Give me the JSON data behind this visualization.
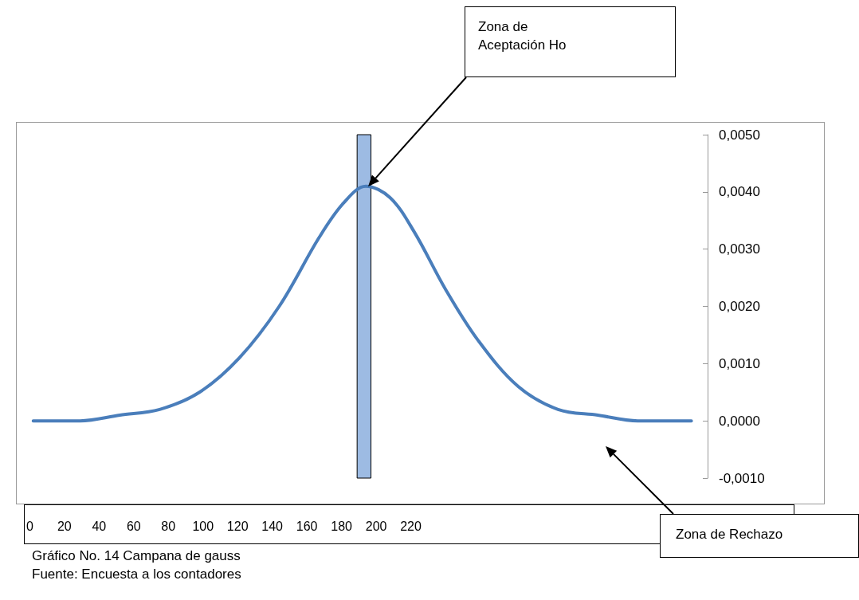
{
  "chart_data": {
    "type": "line",
    "title": "Gráfico No. 14  Campana de gauss",
    "x": [
      2,
      29,
      52,
      75,
      98,
      121,
      144,
      167,
      181,
      194,
      208,
      222,
      240,
      259,
      282,
      305,
      328,
      351,
      382
    ],
    "series": [
      {
        "color": "#4a7ebb",
        "values": [
          0,
          0,
          0.0001,
          0.0002,
          0.0005,
          0.0011,
          0.002,
          0.0032,
          0.0038,
          0.0041,
          0.0039,
          0.0033,
          0.0023,
          0.0014,
          0.0006,
          0.0002,
          0.0001,
          0,
          0
        ]
      }
    ],
    "xlim": [
      -8,
      459
    ],
    "xticks": [
      0,
      20,
      40,
      60,
      80,
      100,
      120,
      140,
      160,
      180,
      200,
      220
    ],
    "ylim": [
      -0.001,
      0.005
    ],
    "yticks": [
      {
        "value": -0.001,
        "label": "-0,0010"
      },
      {
        "value": 0,
        "label": "0,0000"
      },
      {
        "value": 0.001,
        "label": "0,0010"
      },
      {
        "value": 0.002,
        "label": "0,0020"
      },
      {
        "value": 0.003,
        "label": "0,0030"
      },
      {
        "value": 0.004,
        "label": "0,0040"
      },
      {
        "value": 0.005,
        "label": "0,0050"
      }
    ],
    "bands": [
      {
        "axis": "x",
        "from": 189,
        "to": 197,
        "color": "#9dbbe3"
      }
    ],
    "annotations": [
      "Zona de Aceptación Ho",
      "Zona de Rechazo",
      "Fuente: Encuesta a los contadores"
    ],
    "grid": false,
    "marker": "none",
    "line_style": "solid"
  }
}
